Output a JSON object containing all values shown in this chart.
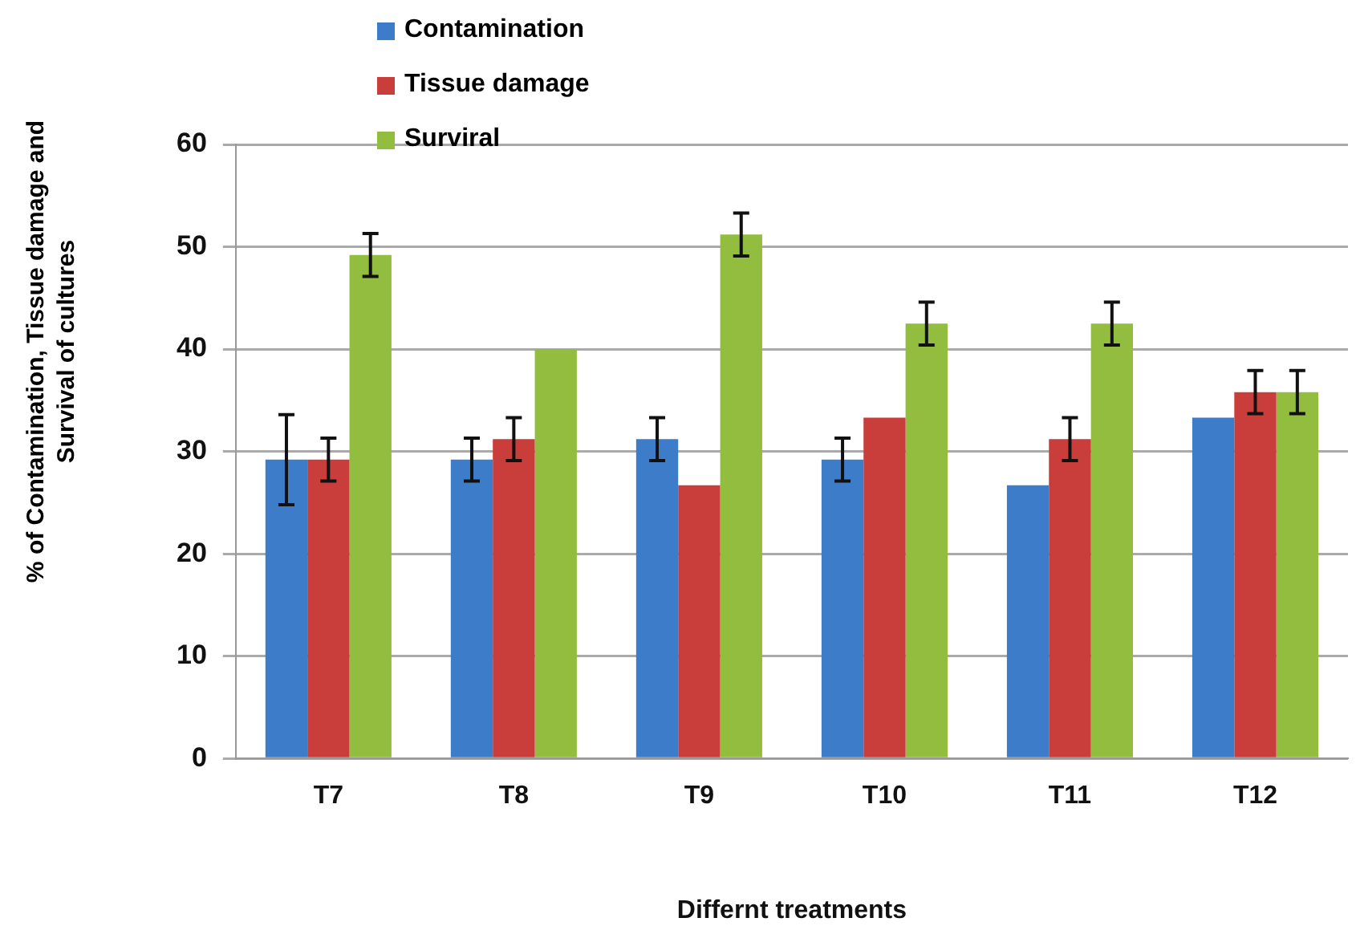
{
  "chart_data": {
    "type": "bar",
    "xlabel": "Differnt treatments",
    "ylabel": "% of Contamination, Tissue damage and Survival of cultures",
    "categories": [
      "T7",
      "T8",
      "T9",
      "T10",
      "T11",
      "T12"
    ],
    "series": [
      {
        "name": "Contamination",
        "color": "#3d7cc9",
        "values": [
          29.2,
          29.2,
          31.2,
          29.2,
          26.7,
          33.3
        ],
        "errors": [
          4.4,
          2.1,
          2.1,
          2.1,
          null,
          null
        ]
      },
      {
        "name": "Tissue damage",
        "color": "#c93d3a",
        "values": [
          29.2,
          31.2,
          26.7,
          33.3,
          31.2,
          35.8
        ],
        "errors": [
          2.1,
          2.1,
          null,
          null,
          2.1,
          2.1
        ]
      },
      {
        "name": "Surviral",
        "color": "#93bd3f",
        "values": [
          49.2,
          40,
          51.2,
          42.5,
          42.5,
          35.8
        ],
        "errors": [
          2.1,
          null,
          2.1,
          2.1,
          2.1,
          2.1
        ]
      }
    ],
    "ylim": [
      0,
      60
    ],
    "yticks": [
      0,
      10,
      20,
      30,
      40,
      50,
      60
    ],
    "grid": "y",
    "legend": "top left"
  }
}
